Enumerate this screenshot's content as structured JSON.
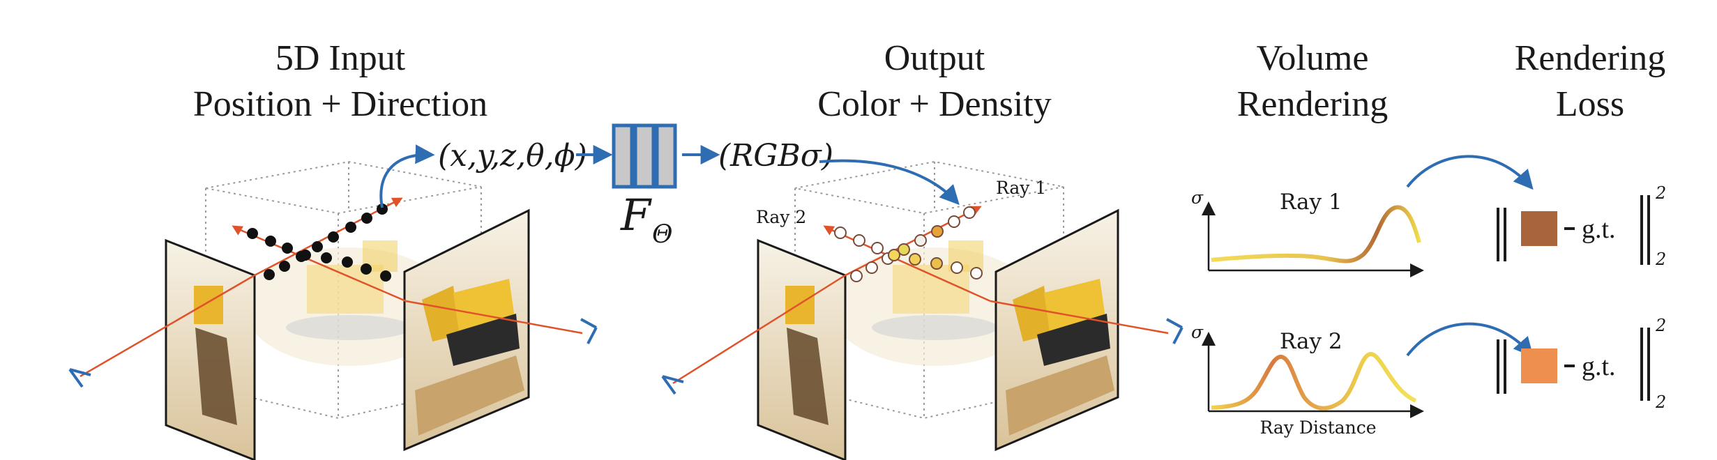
{
  "figure": {
    "sections": {
      "input": {
        "title": "5D Input",
        "subtitle": "Position + Direction"
      },
      "output": {
        "title": "Output",
        "subtitle": "Color + Density"
      },
      "volume": {
        "title": "Volume",
        "subtitle": "Rendering"
      },
      "loss": {
        "title": "Rendering",
        "subtitle": "Loss"
      }
    },
    "input_tuple": "(x,y,z,θ,ϕ)",
    "output_tuple": "(RGBσ)",
    "network": {
      "symbol": "F",
      "subscript": "Θ"
    },
    "ray1_label": "Ray 1",
    "ray2_label": "Ray 2",
    "plots": {
      "top": {
        "y_symbol": "σ",
        "title": "Ray 1"
      },
      "bottom": {
        "y_symbol": "σ",
        "title": "Ray 2",
        "x_label": "Ray Distance"
      }
    },
    "loss_terms": {
      "gt_label": "g.t.",
      "subscript": "2",
      "superscript": "2"
    },
    "colors": {
      "blue": "#2f6db3",
      "ray": "#e0522a",
      "swatch_ray1": "#a8643a",
      "swatch_ray2": "#ef8f4f",
      "network_fill": "#c8c8c8"
    }
  }
}
